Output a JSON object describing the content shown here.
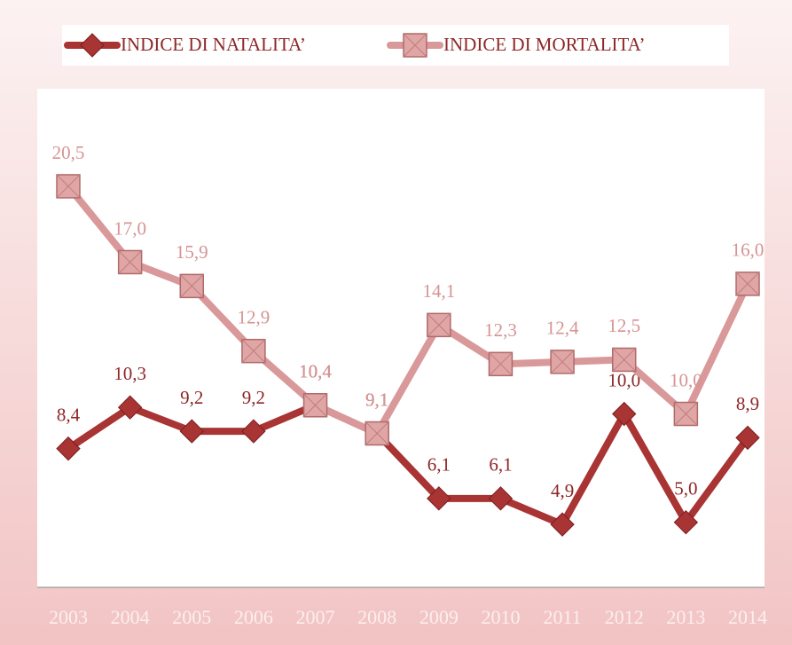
{
  "chart_data": {
    "type": "line",
    "categories": [
      "2003",
      "2004",
      "2005",
      "2006",
      "2007",
      "2008",
      "2009",
      "2010",
      "2011",
      "2012",
      "2013",
      "2014"
    ],
    "series": [
      {
        "name": "INDICE DI NATALITA’",
        "color": "#a93434",
        "values": [
          8.4,
          10.3,
          9.2,
          9.2,
          10.4,
          9.1,
          6.1,
          6.1,
          4.9,
          10.0,
          5.0,
          8.9
        ],
        "value_labels": [
          "8,4",
          "10,3",
          "9,2",
          "9,2",
          "10,4",
          "9,1",
          "6,1",
          "6,1",
          "4,9",
          "10,0",
          "5,0",
          "8,9"
        ]
      },
      {
        "name": "INDICE DI MORTALITA’",
        "color": "#d99899",
        "values": [
          20.5,
          17.0,
          15.9,
          12.9,
          10.4,
          9.1,
          14.1,
          12.3,
          12.4,
          12.5,
          10.0,
          16.0
        ],
        "value_labels": [
          "20,5",
          "17,0",
          "15,9",
          "12,9",
          "10,4",
          "9,1",
          "14,1",
          "12,3",
          "12,4",
          "12,5",
          "10,0",
          "16,0"
        ]
      }
    ],
    "ylim": [
      2,
      25
    ],
    "legend": "top"
  }
}
